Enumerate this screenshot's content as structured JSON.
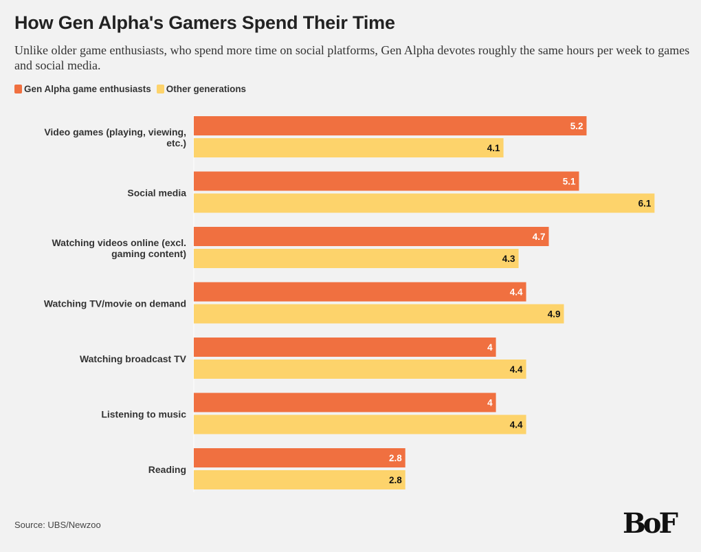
{
  "header": {
    "title": "How Gen Alpha's Gamers Spend Their Time",
    "subtitle": "Unlike older game enthusiasts, who spend more time on social platforms, Gen Alpha devotes roughly the same hours per week to games and social media."
  },
  "colors": {
    "gen_alpha": "#f07040",
    "other": "#fdd36b",
    "background": "#f2f2f2"
  },
  "chart_data": {
    "type": "bar",
    "orientation": "horizontal",
    "title": "How Gen Alpha's Gamers Spend Their Time",
    "xlabel": "",
    "ylabel": "",
    "xlim": [
      0,
      6.1
    ],
    "grid": false,
    "legend_position": "top-left",
    "categories": [
      "Video games (playing, viewing, etc.)",
      "Social media",
      "Watching videos online (excl. gaming content)",
      "Watching TV/movie on demand",
      "Watching broadcast TV",
      "Listening to music",
      "Reading"
    ],
    "series": [
      {
        "name": "Gen Alpha game enthusiasts",
        "values": [
          5.2,
          5.1,
          4.7,
          4.4,
          4,
          4,
          2.8
        ]
      },
      {
        "name": "Other generations",
        "values": [
          4.1,
          6.1,
          4.3,
          4.9,
          4.4,
          4.4,
          2.8
        ]
      }
    ]
  },
  "footer": {
    "source": "Source: UBS/Newzoo",
    "logo": "BoF"
  }
}
